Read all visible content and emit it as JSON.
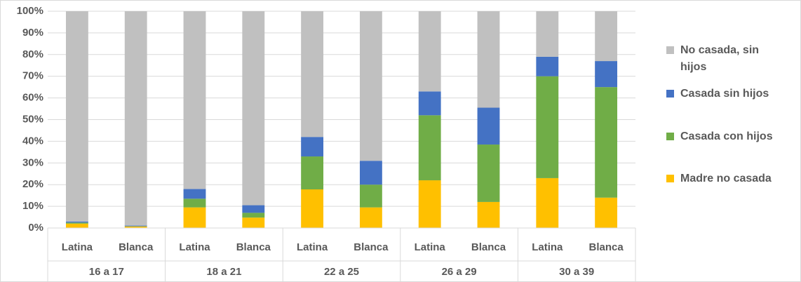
{
  "chart_data": {
    "type": "stacked_bar",
    "categories": [
      "Latina",
      "Blanca",
      "Latina",
      "Blanca",
      "Latina",
      "Blanca",
      "Latina",
      "Blanca",
      "Latina",
      "Blanca"
    ],
    "category_groups": [
      "16 a 17",
      "18 a 21",
      "22 a 25",
      "26 a 29",
      "30 a 39"
    ],
    "series": [
      {
        "name": "Madre no casada",
        "color": "#ffc000",
        "values": [
          2,
          0.7,
          9.5,
          4.8,
          17.8,
          9.5,
          22,
          12,
          23,
          14
        ]
      },
      {
        "name": "Casada con hijos",
        "color": "#70ad47",
        "values": [
          0.5,
          0.1,
          4,
          2.2,
          15.2,
          10.5,
          30,
          26.5,
          47,
          51
        ]
      },
      {
        "name": "Casada sin hijos",
        "color": "#4472c4",
        "values": [
          0.5,
          0.3,
          4.5,
          3.5,
          9,
          11,
          11,
          17,
          9,
          12
        ]
      },
      {
        "name": "No casada, sin hijos",
        "color": "#c0c0c0",
        "values": [
          97,
          98.9,
          82,
          89.5,
          58,
          69,
          37,
          44.5,
          21,
          23
        ]
      }
    ],
    "ylim": [
      0,
      100
    ],
    "yticks": [
      {
        "value": 0,
        "label": "0%"
      },
      {
        "value": 10,
        "label": "10%"
      },
      {
        "value": 20,
        "label": "20%"
      },
      {
        "value": 30,
        "label": "30%"
      },
      {
        "value": 40,
        "label": "40%"
      },
      {
        "value": 50,
        "label": "50%"
      },
      {
        "value": 60,
        "label": "60%"
      },
      {
        "value": 70,
        "label": "70%"
      },
      {
        "value": 80,
        "label": "80%"
      },
      {
        "value": 90,
        "label": "90%"
      },
      {
        "value": 100,
        "label": "100%"
      }
    ],
    "grid": true,
    "legend": "right"
  }
}
